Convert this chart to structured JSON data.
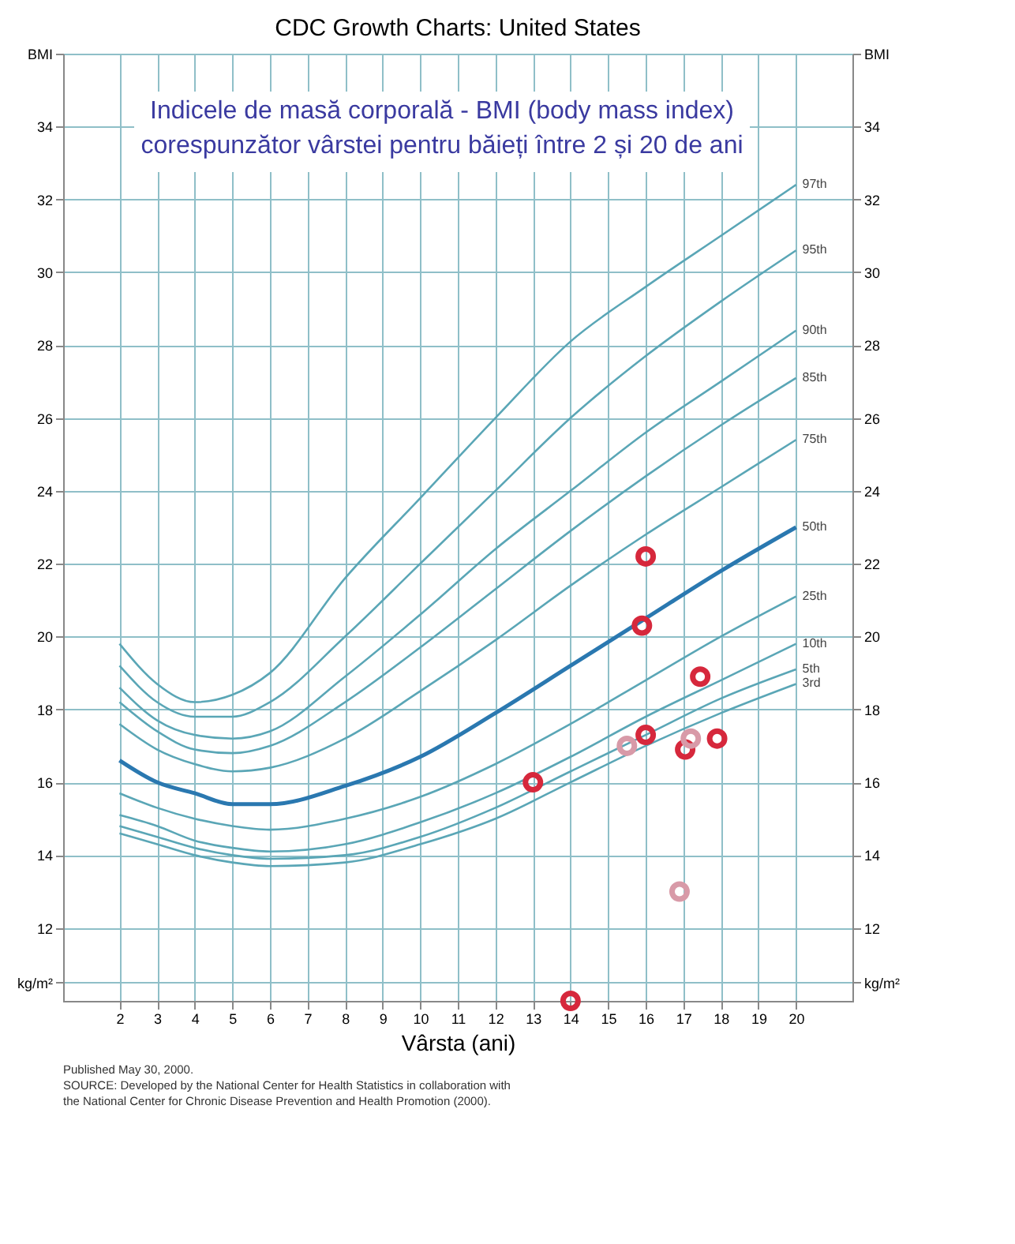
{
  "chart_data": {
    "type": "line",
    "title": "CDC Growth Charts: United States",
    "subtitle": [
      "Indicele de masă corporală  - BMI (body mass index)",
      "corespunzător vârstei pentru băieți între 2 și 20 de ani"
    ],
    "xlabel": "Vârsta (ani)",
    "annotations": [
      "Published May 30, 2000.",
      "SOURCE: Developed by the National Center for Health Statistics in collaboration with",
      "the National Center for Chronic Disease Prevention and Health Promotion (2000)."
    ],
    "x": [
      2,
      3,
      4,
      5,
      6,
      8,
      10,
      12,
      14,
      16,
      18,
      20
    ],
    "series": [
      {
        "name": "97th",
        "color": "#5aa6b6",
        "values": [
          19.8,
          18.7,
          18.2,
          18.4,
          19.0,
          21.6,
          23.8,
          26.0,
          28.1,
          29.6,
          31.0,
          32.4
        ]
      },
      {
        "name": "95th",
        "color": "#5aa6b6",
        "values": [
          19.2,
          18.2,
          17.8,
          17.8,
          18.2,
          20.0,
          22.0,
          24.0,
          26.0,
          27.7,
          29.2,
          30.6
        ]
      },
      {
        "name": "90th",
        "color": "#5aa6b6",
        "values": [
          18.6,
          17.7,
          17.3,
          17.2,
          17.4,
          18.9,
          20.6,
          22.4,
          24.0,
          25.6,
          27.0,
          28.4
        ]
      },
      {
        "name": "85th",
        "color": "#5aa6b6",
        "values": [
          18.2,
          17.4,
          16.9,
          16.8,
          17.0,
          18.2,
          19.7,
          21.3,
          22.9,
          24.4,
          25.8,
          27.1
        ]
      },
      {
        "name": "75th",
        "color": "#5aa6b6",
        "values": [
          17.6,
          16.9,
          16.5,
          16.3,
          16.4,
          17.2,
          18.5,
          19.9,
          21.4,
          22.8,
          24.1,
          25.4
        ]
      },
      {
        "name": "50th",
        "color": "#2a78b0",
        "values": [
          16.6,
          16.0,
          15.7,
          15.4,
          15.4,
          15.9,
          16.7,
          17.9,
          19.2,
          20.5,
          21.8,
          23.0
        ]
      },
      {
        "name": "25th",
        "color": "#5aa6b6",
        "values": [
          15.7,
          15.3,
          15.0,
          14.8,
          14.7,
          15.0,
          15.6,
          16.5,
          17.6,
          18.8,
          20.0,
          21.1
        ]
      },
      {
        "name": "10th",
        "color": "#5aa6b6",
        "values": [
          15.1,
          14.8,
          14.4,
          14.2,
          14.1,
          14.3,
          14.9,
          15.7,
          16.7,
          17.8,
          18.8,
          19.8
        ]
      },
      {
        "name": "5th",
        "color": "#5aa6b6",
        "values": [
          14.8,
          14.5,
          14.2,
          14.0,
          13.9,
          14.0,
          14.5,
          15.3,
          16.3,
          17.3,
          18.3,
          19.1
        ]
      },
      {
        "name": "3rd",
        "color": "#5aa6b6",
        "values": [
          14.6,
          14.3,
          14.0,
          13.8,
          13.7,
          13.8,
          14.3,
          15.0,
          16.0,
          17.0,
          17.9,
          18.7
        ]
      },
      {
        "type": "scatter",
        "color": "#d6283c",
        "marker": "circle",
        "x": [
          16.0,
          15.9,
          17.45,
          16.0,
          17.05,
          17.9,
          13.0,
          14.0
        ],
        "values": [
          22.2,
          20.3,
          18.9,
          17.3,
          16.9,
          17.2,
          16.0,
          10.0
        ]
      },
      {
        "type": "scatter",
        "color": "#d89aa8",
        "marker": "circle",
        "x": [
          15.5,
          17.2,
          16.9
        ],
        "values": [
          17.0,
          17.2,
          13.0
        ]
      }
    ],
    "xlim": [
      0.5,
      21.5
    ],
    "xticks": [
      2,
      3,
      4,
      5,
      6,
      7,
      8,
      9,
      10,
      11,
      12,
      13,
      14,
      15,
      16,
      17,
      18,
      19,
      20
    ],
    "ylim": [
      10,
      36
    ],
    "yticks": [
      {
        "value": 10.5,
        "label": "kg/m²"
      },
      12,
      14,
      16,
      18,
      20,
      22,
      24,
      26,
      28,
      30,
      32,
      34,
      {
        "value": 36,
        "label": "BMI"
      }
    ],
    "y2lim": [
      10,
      36
    ],
    "y2ticks": [
      {
        "value": 10.5,
        "label": "kg/m²"
      },
      12,
      14,
      16,
      18,
      20,
      22,
      24,
      26,
      28,
      30,
      32,
      34,
      {
        "value": 36,
        "label": "BMI"
      }
    ],
    "grid": true
  }
}
